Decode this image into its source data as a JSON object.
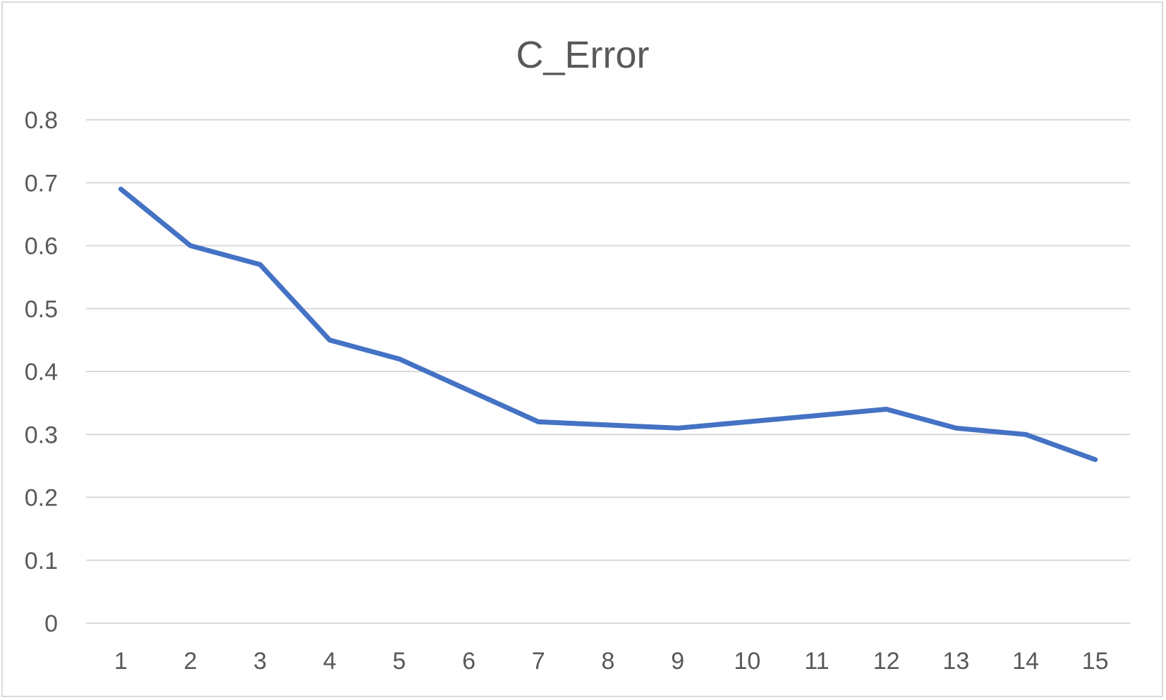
{
  "chart_data": {
    "type": "line",
    "title": "C_Error",
    "xlabel": "",
    "ylabel": "",
    "categories": [
      "1",
      "2",
      "3",
      "4",
      "5",
      "6",
      "7",
      "8",
      "9",
      "10",
      "11",
      "12",
      "13",
      "14",
      "15"
    ],
    "series": [
      {
        "values": [
          0.69,
          0.6,
          0.57,
          0.45,
          0.42,
          0.37,
          0.32,
          0.315,
          0.31,
          0.32,
          0.33,
          0.34,
          0.31,
          0.3,
          0.26
        ]
      }
    ],
    "y_ticks": [
      "0",
      "0.1",
      "0.2",
      "0.3",
      "0.4",
      "0.5",
      "0.6",
      "0.7",
      "0.8"
    ],
    "ylim": [
      0,
      0.8
    ],
    "grid": true,
    "legend": "none",
    "colors": {
      "series": "#4472c4",
      "grid": "#d9d9d9",
      "text": "#595959"
    }
  }
}
